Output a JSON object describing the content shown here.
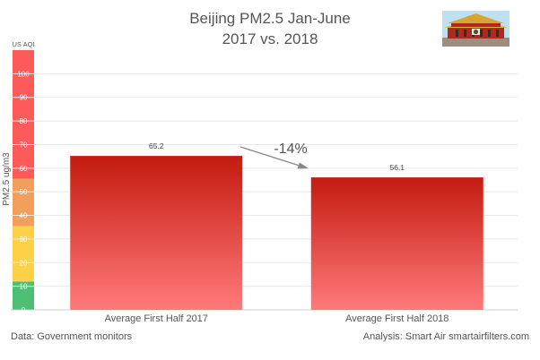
{
  "chart_data": {
    "type": "bar",
    "title_line1": "Beijing PM2.5 Jan-June",
    "title_line2": "2017 vs. 2018",
    "categories": [
      "Average First Half 2017",
      "Average First Half 2018"
    ],
    "values": [
      65.2,
      56.1
    ],
    "value_labels": [
      "65.2",
      "56.1"
    ],
    "change_label": "-14%",
    "ylabel": "PM2.5 ug/m3",
    "aqi_label": "US AQI",
    "ylim": [
      0,
      110
    ],
    "yticks": [
      0,
      10,
      20,
      30,
      40,
      50,
      60,
      70,
      80,
      90,
      100
    ],
    "grid": true,
    "bar_gradient": {
      "top": "#c41b10",
      "bottom": "#ff7a7a"
    },
    "aqi_bands": [
      {
        "from": 0,
        "to": 12,
        "color": "#4cbf74"
      },
      {
        "from": 12,
        "to": 35.5,
        "color": "#ffd146"
      },
      {
        "from": 35.5,
        "to": 55.5,
        "color": "#f0a05a"
      },
      {
        "from": 55.5,
        "to": 110,
        "color": "#ff5a5a"
      }
    ]
  },
  "footer": {
    "source": "Data: Government monitors",
    "analysis": "Analysis: Smart Air smartairfilters.com"
  },
  "image": {
    "icon": "tiananmen-gate-icon"
  }
}
